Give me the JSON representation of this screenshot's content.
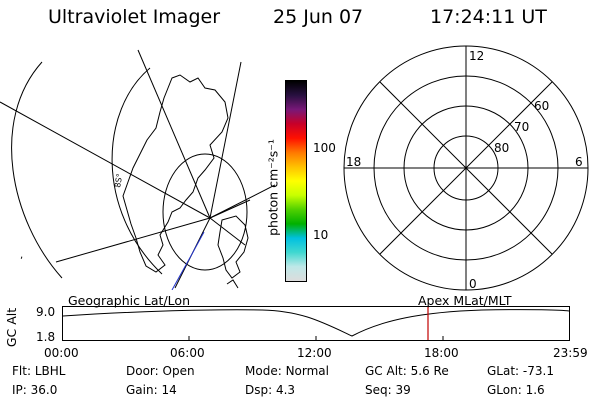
{
  "header": {
    "title": "Ultraviolet Imager",
    "date": "25 Jun 07",
    "time": "17:24:11 UT"
  },
  "colorbar": {
    "unit": "photon cm⁻²s⁻¹",
    "ticks": [
      "100",
      "10"
    ],
    "colors": [
      "#dcdcdc",
      "#bfe8e8",
      "#40d8d0",
      "#00c0e0",
      "#00b000",
      "#50d000",
      "#c8ff00",
      "#ffff00",
      "#ffc000",
      "#ff7800",
      "#ff1000",
      "#c80028",
      "#781878",
      "#281040",
      "#000000"
    ]
  },
  "geo_map": {
    "label": "Geographic Lat/Lon",
    "corner_mark": ","
  },
  "polar_plot": {
    "label": "Apex MLat/MLT",
    "mlt_labels": {
      "top": "12",
      "left": "18",
      "right": "6",
      "bottom": "0"
    },
    "lat_labels": [
      "60",
      "70",
      "80"
    ]
  },
  "altitude_plot": {
    "ylabel": "GC Alt",
    "yticks": [
      "9.0",
      "1.8"
    ],
    "xticks": [
      "00:00",
      "06:00",
      "12:00",
      "18:00",
      "23:59"
    ],
    "current_time_marker_color": "#c00000"
  },
  "footer": {
    "flt": {
      "label": "Flt:",
      "value": "LBHL"
    },
    "door": {
      "label": "Door:",
      "value": "Open"
    },
    "mode": {
      "label": "Mode:",
      "value": "Normal"
    },
    "gcalt": {
      "label": "GC Alt:",
      "value": "5.6 Re"
    },
    "glat": {
      "label": "GLat:",
      "value": "-73.1"
    },
    "ip": {
      "label": "IP:",
      "value": "36.0"
    },
    "gain": {
      "label": "Gain:",
      "value": "14"
    },
    "dsp": {
      "label": "Dsp:",
      "value": "4.3"
    },
    "seq": {
      "label": "Seq:",
      "value": "39"
    },
    "glon": {
      "label": "GLon:",
      "value": "1.6"
    }
  }
}
